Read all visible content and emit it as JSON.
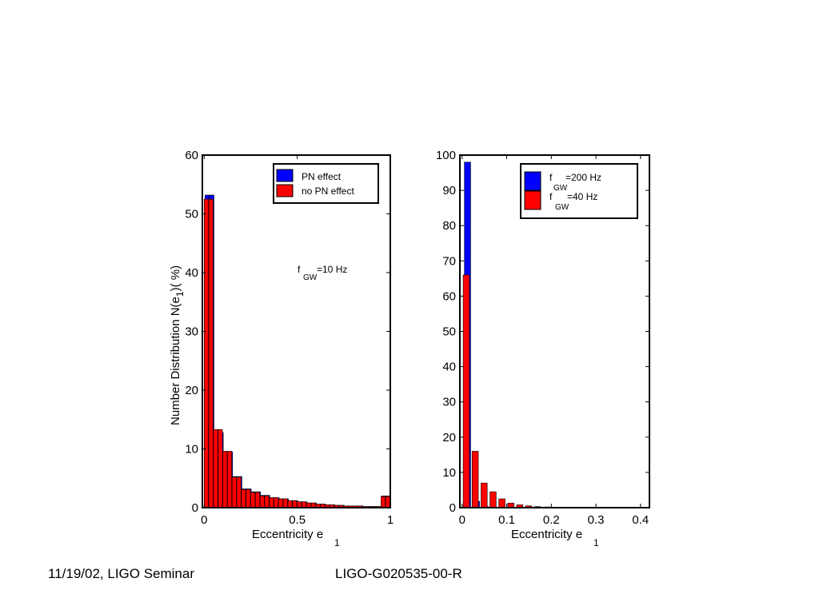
{
  "footer": {
    "left": "11/19/02, LIGO Seminar",
    "right": "LIGO-G020535-00-R"
  },
  "colors": {
    "blue": "#0000ff",
    "red": "#ff0000",
    "frame": "#000000"
  },
  "chart_data": [
    {
      "type": "bar",
      "title": "",
      "xlabel": "Eccentricity e",
      "xlabel_sub": "1",
      "ylabel": "Number Distribution N(e",
      "ylabel_sub": "1",
      "ylabel_tail": ")( %)",
      "xlim": [
        -0.01,
        1.0
      ],
      "ylim": [
        0,
        60
      ],
      "xticks": [
        0,
        0.5,
        1
      ],
      "xtick_labels": [
        "0",
        "0.5",
        "1"
      ],
      "yticks": [
        0,
        10,
        20,
        30,
        40,
        50,
        60
      ],
      "ytick_labels": [
        "0",
        "10",
        "20",
        "30",
        "40",
        "50",
        "60"
      ],
      "bin_width": 0.025,
      "x": [
        0.0125,
        0.0375,
        0.0625,
        0.0875,
        0.1125,
        0.1375,
        0.1625,
        0.1875,
        0.2125,
        0.2375,
        0.2625,
        0.2875,
        0.3125,
        0.3375,
        0.3625,
        0.3875,
        0.4125,
        0.4375,
        0.4625,
        0.4875,
        0.5125,
        0.5375,
        0.5625,
        0.5875,
        0.6125,
        0.6375,
        0.6625,
        0.6875,
        0.7125,
        0.7375,
        0.7625,
        0.7875,
        0.8125,
        0.8375,
        0.8625,
        0.8875,
        0.9125,
        0.9375,
        0.9625,
        0.9875
      ],
      "series": [
        {
          "name": "PN effect",
          "color": "#0000ff",
          "values": [
            53.2,
            53.2,
            12.8,
            12.8,
            9.5,
            9.5,
            5.3,
            5.3,
            3.2,
            3.2,
            2.7,
            2.7,
            2.1,
            2.1,
            1.7,
            1.7,
            1.5,
            1.5,
            1.2,
            1.2,
            1.0,
            1.0,
            0.8,
            0.8,
            0.6,
            0.6,
            0.5,
            0.5,
            0.4,
            0.4,
            0.3,
            0.3,
            0.3,
            0.3,
            0.2,
            0.2,
            0.2,
            0.2,
            2.0,
            2.0
          ]
        },
        {
          "name": "no PN effect",
          "color": "#ff0000",
          "values": [
            52.5,
            52.5,
            13.3,
            13.3,
            9.6,
            9.6,
            5.2,
            5.2,
            3.1,
            3.1,
            2.6,
            2.6,
            2.0,
            2.0,
            1.7,
            1.7,
            1.5,
            1.5,
            1.2,
            1.2,
            1.0,
            1.0,
            0.8,
            0.8,
            0.6,
            0.6,
            0.5,
            0.5,
            0.4,
            0.4,
            0.3,
            0.3,
            0.3,
            0.3,
            0.2,
            0.2,
            0.2,
            0.2,
            1.9,
            1.9
          ]
        }
      ],
      "legend": {
        "position": "top-right",
        "entries": [
          {
            "label": "PN effect",
            "color": "#0000ff"
          },
          {
            "label": "no PN effect",
            "color": "#ff0000"
          }
        ]
      },
      "annotation": {
        "text": "f",
        "sub": "GW",
        "tail": "=10 Hz"
      }
    },
    {
      "type": "bar",
      "title": "",
      "xlabel": "Eccentricity e",
      "xlabel_sub": "1",
      "xlim": [
        -0.005,
        0.42
      ],
      "ylim": [
        0,
        100
      ],
      "xticks": [
        0,
        0.1,
        0.2,
        0.3,
        0.4
      ],
      "xtick_labels": [
        "0",
        "0.1",
        "0.2",
        "0.3",
        "0.4"
      ],
      "yticks": [
        0,
        10,
        20,
        30,
        40,
        50,
        60,
        70,
        80,
        90,
        100
      ],
      "ytick_labels": [
        "0",
        "10",
        "20",
        "30",
        "40",
        "50",
        "60",
        "70",
        "80",
        "90",
        "100"
      ],
      "bin_width": 0.02,
      "x": [
        0.01,
        0.03,
        0.05,
        0.07,
        0.09,
        0.11,
        0.13,
        0.15,
        0.17,
        0.19,
        0.21,
        0.23,
        0.25,
        0.27,
        0.29,
        0.31,
        0.33,
        0.35,
        0.37,
        0.39,
        0.41
      ],
      "series": [
        {
          "name": "f GW=200 Hz",
          "color": "#0000ff",
          "values": [
            98.0,
            1.8,
            0.3,
            0.1,
            0.05,
            0.03,
            0.02,
            0.01,
            0.0,
            0.0,
            0.0,
            0.0,
            0.0,
            0.0,
            0.0,
            0.0,
            0.0,
            0.0,
            0.0,
            0.0,
            0.0
          ]
        },
        {
          "name": "f GW=40 Hz",
          "color": "#ff0000",
          "values": [
            66.0,
            16.0,
            7.0,
            4.5,
            2.5,
            1.3,
            0.8,
            0.5,
            0.3,
            0.2,
            0.15,
            0.1,
            0.1,
            0.08,
            0.05,
            0.05,
            0.03,
            0.03,
            0.02,
            0.02,
            0.02
          ]
        }
      ],
      "legend": {
        "position": "top-right",
        "entries": [
          {
            "label": "f",
            "sub": "GW",
            "tail": "=200 Hz",
            "color": "#0000ff"
          },
          {
            "label": "f",
            "sub": "GW",
            "tail": "=40 Hz",
            "color": "#ff0000"
          }
        ]
      }
    }
  ]
}
